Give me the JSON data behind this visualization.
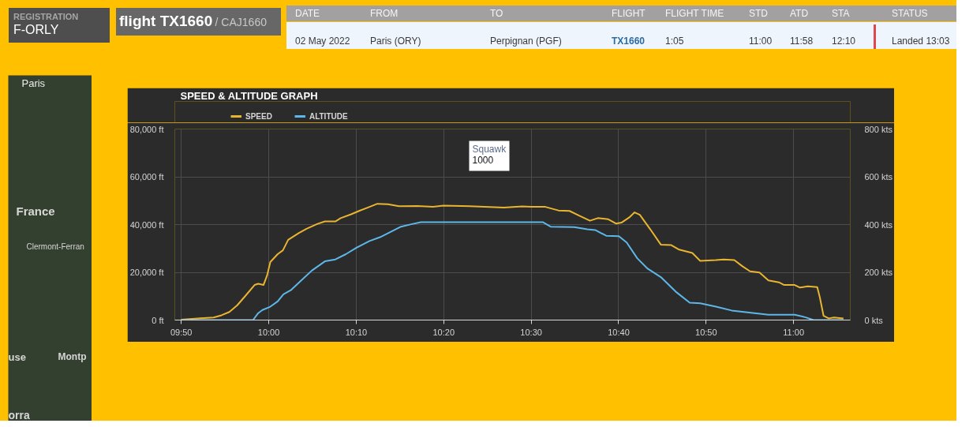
{
  "chart_data": {
    "type": "line",
    "title": "SPEED & ALTITUDE GRAPH",
    "xlim": [
      9.821,
      11.108
    ],
    "ylim": [
      0,
      80000
    ],
    "y2lim": [
      0,
      800
    ],
    "xticks": [
      {
        "value": 9.8333,
        "label": "09:50"
      },
      {
        "value": 10,
        "label": "10:00"
      },
      {
        "value": 10.1667,
        "label": "10:10"
      },
      {
        "value": 10.3333,
        "label": "10:20"
      },
      {
        "value": 10.5,
        "label": "10:30"
      },
      {
        "value": 10.6667,
        "label": "10:40"
      },
      {
        "value": 10.8333,
        "label": "10:50"
      },
      {
        "value": 11,
        "label": "11:00"
      }
    ],
    "yticks": [
      {
        "value": 0,
        "label": "0 ft"
      },
      {
        "value": 20000,
        "label": "20,000 ft"
      },
      {
        "value": 40000,
        "label": "40,000 ft"
      },
      {
        "value": 60000,
        "label": "60,000 ft"
      },
      {
        "value": 80000,
        "label": "80,000 ft"
      }
    ],
    "y2ticks": [
      {
        "value": 0,
        "label": "0 kts"
      },
      {
        "value": 200,
        "label": "200 kts"
      },
      {
        "value": 400,
        "label": "400 kts"
      },
      {
        "value": 600,
        "label": "600 kts"
      },
      {
        "value": 800,
        "label": "800 kts"
      }
    ],
    "grid": true,
    "legend": "top left",
    "annotations": [
      "REGISTRATION",
      "F-ORLY",
      "flight TX1660",
      "/ CAJ1660",
      "DATE",
      "FROM",
      "TO",
      "FLIGHT",
      "FLIGHT TIME",
      "STD",
      "ATD",
      "STA",
      "STATUS",
      "02 May 2022",
      "Paris (ORY)",
      "Perpignan (PGF)",
      "TX1660",
      "1:05",
      "11:00",
      "11:58",
      "12:10",
      "Landed 13:03",
      "Paris",
      "France",
      "Clermont-Ferran",
      "use",
      "Montp",
      "orra",
      "Squawk\n1000"
    ],
    "series": [
      {
        "name": "SPEED",
        "color": "#e9b530",
        "axis": "y2",
        "x": [
          9.833,
          9.865,
          9.895,
          9.91,
          9.925,
          9.94,
          9.955,
          9.973,
          9.98,
          9.99,
          9.997,
          10.003,
          10.017,
          10.027,
          10.037,
          10.057,
          10.072,
          10.092,
          10.107,
          10.127,
          10.137,
          10.157,
          10.172,
          10.192,
          10.207,
          10.227,
          10.248,
          10.283,
          10.313,
          10.333,
          10.383,
          10.448,
          10.483,
          10.5,
          10.527,
          10.552,
          10.573,
          10.592,
          10.612,
          10.627,
          10.647,
          10.662,
          10.672,
          10.687,
          10.697,
          10.707,
          10.727,
          10.747,
          10.767,
          10.782,
          10.807,
          10.822,
          10.852,
          10.867,
          10.887,
          10.902,
          10.917,
          10.935,
          10.952,
          10.972,
          10.982,
          11.002,
          11.012,
          11.027,
          11.045,
          11.05,
          11.057,
          11.067,
          11.077,
          11.095
        ],
        "values": [
          2,
          7,
          11,
          20,
          34,
          62,
          100,
          147,
          152,
          147,
          188,
          243,
          276,
          292,
          336,
          364,
          382,
          402,
          413,
          413,
          427,
          443,
          457,
          474,
          487,
          485,
          477,
          478,
          474,
          479,
          477,
          471,
          476,
          474,
          474,
          459,
          457,
          437,
          416,
          427,
          422,
          404,
          408,
          430,
          451,
          441,
          380,
          316,
          314,
          295,
          281,
          248,
          251,
          254,
          251,
          226,
          204,
          199,
          166,
          158,
          147,
          147,
          136,
          141,
          138,
          95,
          18,
          7,
          11,
          7
        ]
      },
      {
        "name": "ALTITUDE",
        "color": "#5db7e8",
        "x": [
          9.833,
          9.97,
          9.98,
          9.988,
          10.003,
          10.017,
          10.028,
          10.042,
          10.062,
          10.082,
          10.107,
          10.127,
          10.147,
          10.167,
          10.192,
          10.212,
          10.232,
          10.252,
          10.273,
          10.29,
          10.522,
          10.537,
          10.582,
          10.607,
          10.622,
          10.643,
          10.667,
          10.682,
          10.702,
          10.722,
          10.747,
          10.777,
          10.802,
          10.822,
          10.852,
          10.882,
          10.912,
          10.952,
          11.002,
          11.022,
          11.038,
          11.095
        ],
        "values": [
          0,
          0,
          2900,
          4200,
          5600,
          7800,
          10800,
          12500,
          16600,
          20700,
          24600,
          25400,
          27600,
          30300,
          33100,
          34700,
          36900,
          39100,
          40200,
          41000,
          41000,
          39100,
          38900,
          38000,
          37700,
          35300,
          35100,
          32500,
          25900,
          21500,
          18000,
          11600,
          7300,
          7000,
          5600,
          4000,
          3200,
          2200,
          2200,
          1200,
          0,
          0
        ]
      }
    ]
  }
}
